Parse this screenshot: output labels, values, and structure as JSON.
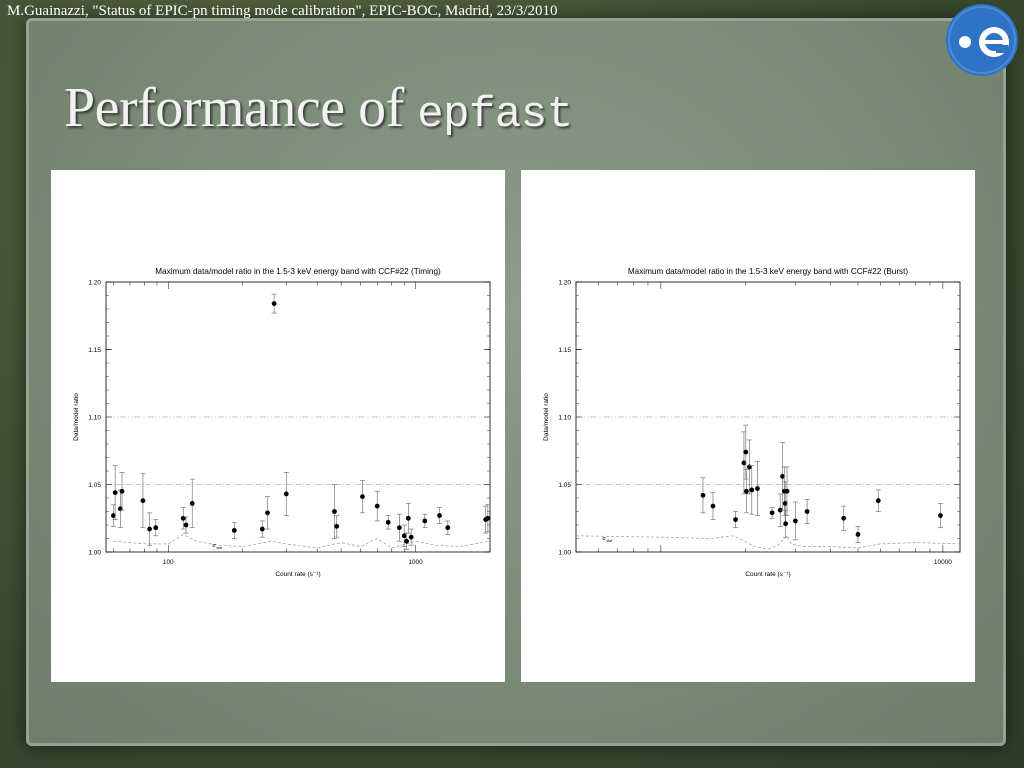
{
  "slide": {
    "header": "M.Guainazzi, \"Status of EPIC-pn timing mode calibration\", EPIC-BOC, Madrid, 23/3/2010",
    "title_main": "Performance of",
    "title_code": "epfast",
    "logo_icon": "esa-logo-icon"
  },
  "chart_data": [
    {
      "type": "scatter",
      "title": "Maximum data/model ratio in the 1.5-3 keV energy band with CCF#22 (Timing)",
      "xlabel": "Count rate (s⁻¹)",
      "ylabel": "Data/model ratio",
      "xscale": "log",
      "xlim": [
        56,
        2000
      ],
      "ylim": [
        1.0,
        1.2
      ],
      "yticks": [
        "1.00",
        "1.05",
        "1.10",
        "1.15",
        "1.20"
      ],
      "xtick_labels": [
        {
          "value": 100,
          "label": "100"
        },
        {
          "value": 1000,
          "label": "1000"
        }
      ],
      "reference_lines": [
        1.05,
        1.1
      ],
      "sigma_label": "σ",
      "sigma_sub": "stat",
      "sigma_curve": [
        [
          60,
          1.008
        ],
        [
          80,
          1.006
        ],
        [
          100,
          1.006
        ],
        [
          115,
          1.013
        ],
        [
          130,
          1.008
        ],
        [
          160,
          1.005
        ],
        [
          200,
          1.004
        ],
        [
          260,
          1.008
        ],
        [
          300,
          1.006
        ],
        [
          400,
          1.003
        ],
        [
          500,
          1.007
        ],
        [
          600,
          1.004
        ],
        [
          700,
          1.01
        ],
        [
          800,
          1.003
        ],
        [
          1000,
          1.008
        ],
        [
          1200,
          1.005
        ],
        [
          1500,
          1.004
        ],
        [
          2000,
          1.008
        ]
      ],
      "series": [
        {
          "points": [
            {
              "x": 60,
              "y": 1.027,
              "err": 0.008
            },
            {
              "x": 61,
              "y": 1.044,
              "err": 0.02
            },
            {
              "x": 64,
              "y": 1.032,
              "err": 0.014
            },
            {
              "x": 65,
              "y": 1.045,
              "err": 0.014
            },
            {
              "x": 79,
              "y": 1.038,
              "err": 0.02
            },
            {
              "x": 84,
              "y": 1.017,
              "err": 0.012
            },
            {
              "x": 89,
              "y": 1.018,
              "err": 0.006
            },
            {
              "x": 115,
              "y": 1.025,
              "err": 0.008
            },
            {
              "x": 118,
              "y": 1.02,
              "err": 0.006
            },
            {
              "x": 125,
              "y": 1.036,
              "err": 0.018
            },
            {
              "x": 185,
              "y": 1.016,
              "err": 0.006
            },
            {
              "x": 240,
              "y": 1.017,
              "err": 0.006
            },
            {
              "x": 252,
              "y": 1.029,
              "err": 0.012
            },
            {
              "x": 268,
              "y": 1.184,
              "err": 0.007
            },
            {
              "x": 300,
              "y": 1.043,
              "err": 0.016
            },
            {
              "x": 470,
              "y": 1.03,
              "err": 0.02
            },
            {
              "x": 480,
              "y": 1.019,
              "err": 0.008
            },
            {
              "x": 610,
              "y": 1.041,
              "err": 0.012
            },
            {
              "x": 700,
              "y": 1.034,
              "err": 0.011
            },
            {
              "x": 775,
              "y": 1.022,
              "err": 0.005
            },
            {
              "x": 860,
              "y": 1.018,
              "err": 0.01
            },
            {
              "x": 900,
              "y": 1.012,
              "err": 0.008
            },
            {
              "x": 920,
              "y": 1.008,
              "err": 0.006
            },
            {
              "x": 935,
              "y": 1.025,
              "err": 0.011
            },
            {
              "x": 960,
              "y": 1.011,
              "err": 0.006
            },
            {
              "x": 1090,
              "y": 1.023,
              "err": 0.005
            },
            {
              "x": 1250,
              "y": 1.027,
              "err": 0.006
            },
            {
              "x": 1350,
              "y": 1.018,
              "err": 0.005
            },
            {
              "x": 1920,
              "y": 1.024,
              "err": 0.01
            },
            {
              "x": 1960,
              "y": 1.025,
              "err": 0.01
            }
          ]
        }
      ]
    },
    {
      "type": "scatter",
      "title": "Maximum data/model ratio in the 1.5-3 keV energy band with CCF#22 (Burst)",
      "xlabel": "Count rate (s⁻¹)",
      "ylabel": "Data/model ratio",
      "xscale": "log",
      "xlim": [
        500,
        11500
      ],
      "ylim": [
        1.0,
        1.2
      ],
      "yticks": [
        "1.00",
        "1.05",
        "1.10",
        "1.15",
        "1.20"
      ],
      "xtick_labels": [
        {
          "value": 10000,
          "label": "10000"
        }
      ],
      "reference_lines": [
        1.05,
        1.1
      ],
      "sigma_label": "σ",
      "sigma_sub": "stat",
      "sigma_curve": [
        [
          500,
          1.012
        ],
        [
          1000,
          1.011
        ],
        [
          1500,
          1.01
        ],
        [
          1800,
          1.012
        ],
        [
          1900,
          1.01
        ],
        [
          2150,
          1.004
        ],
        [
          2400,
          1.002
        ],
        [
          2600,
          1.005
        ],
        [
          2800,
          1.012
        ],
        [
          2900,
          1.006
        ],
        [
          3200,
          1.004
        ],
        [
          4000,
          1.004
        ],
        [
          5000,
          1.003
        ],
        [
          6000,
          1.006
        ],
        [
          8000,
          1.007
        ],
        [
          11500,
          1.006
        ]
      ],
      "series": [
        {
          "points": [
            {
              "x": 1410,
              "y": 1.042,
              "err": 0.013
            },
            {
              "x": 1530,
              "y": 1.034,
              "err": 0.01
            },
            {
              "x": 1840,
              "y": 1.024,
              "err": 0.006
            },
            {
              "x": 1970,
              "y": 1.066,
              "err": 0.023
            },
            {
              "x": 2000,
              "y": 1.074,
              "err": 0.02
            },
            {
              "x": 2010,
              "y": 1.045,
              "err": 0.016
            },
            {
              "x": 2060,
              "y": 1.063,
              "err": 0.02
            },
            {
              "x": 2100,
              "y": 1.046,
              "err": 0.018
            },
            {
              "x": 2200,
              "y": 1.047,
              "err": 0.02
            },
            {
              "x": 2480,
              "y": 1.029,
              "err": 0.004
            },
            {
              "x": 2650,
              "y": 1.031,
              "err": 0.012
            },
            {
              "x": 2700,
              "y": 1.056,
              "err": 0.025
            },
            {
              "x": 2740,
              "y": 1.045,
              "err": 0.018
            },
            {
              "x": 2760,
              "y": 1.036,
              "err": 0.016
            },
            {
              "x": 2770,
              "y": 1.021,
              "err": 0.01
            },
            {
              "x": 2800,
              "y": 1.045,
              "err": 0.018
            },
            {
              "x": 3000,
              "y": 1.023,
              "err": 0.014
            },
            {
              "x": 3300,
              "y": 1.03,
              "err": 0.009
            },
            {
              "x": 4450,
              "y": 1.025,
              "err": 0.009
            },
            {
              "x": 5000,
              "y": 1.013,
              "err": 0.006
            },
            {
              "x": 5900,
              "y": 1.038,
              "err": 0.008
            },
            {
              "x": 9800,
              "y": 1.027,
              "err": 0.009
            }
          ]
        }
      ]
    }
  ]
}
